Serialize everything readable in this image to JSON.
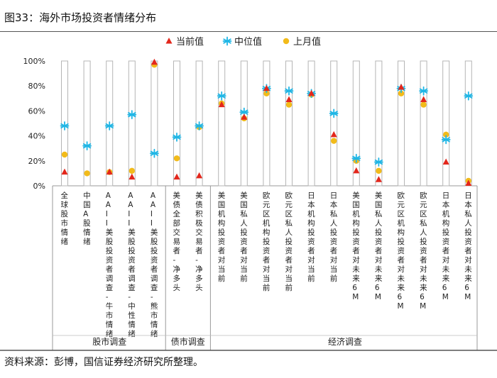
{
  "figure": {
    "title": "图33：海外市场投资者情绪分布",
    "source": "资料来源：彭博，国信证券经济研究所整理。"
  },
  "colors": {
    "current": "#e3271c",
    "median": "#1fb6e6",
    "last_month": "#f2bb1a",
    "bar_outline": "#b5b5b5"
  },
  "chart_data": {
    "type": "scatter",
    "y_ticks": [
      "0%",
      "20%",
      "40%",
      "60%",
      "80%",
      "100%"
    ],
    "ylim": [
      0,
      100
    ],
    "legend": [
      {
        "key": "current",
        "label": "当前值",
        "marker": "triangle"
      },
      {
        "key": "median",
        "label": "中位值",
        "marker": "asterisk"
      },
      {
        "key": "last_month",
        "label": "上月值",
        "marker": "circle"
      }
    ],
    "categories": [
      "全球股市情绪",
      "中国A股情绪",
      "AAII美股投资者调查-牛市情绪",
      "AAII美股投资者调查-中性情绪",
      "AAII美股投资者调查-熊市情绪",
      "美债全部交易者-净多头",
      "美债积极交易者-净多头",
      "美国机构投资者对当前",
      "美国私人投资者对当前",
      "欧元区机构投资者对当前",
      "欧元区私人投资者对当前",
      "日本机构投资者对当前",
      "日本私人投资者对当前",
      "美国机构投资者对未来6M",
      "美国私人投资者对未来6M",
      "欧元区机构投资者对未来6M",
      "欧元区私人投资者对未来6M",
      "日本机构投资者对未来6M",
      "日本私人投资者对未来6M"
    ],
    "series": [
      {
        "key": "current",
        "name": "当前值",
        "values": [
          11,
          null,
          11,
          7,
          99,
          7,
          8,
          65,
          55,
          78,
          69,
          74,
          41,
          12,
          5,
          79,
          69,
          19,
          2
        ]
      },
      {
        "key": "median",
        "name": "中位值",
        "values": [
          48,
          32,
          48,
          57,
          26,
          39,
          48,
          72,
          59,
          78,
          76,
          74,
          58,
          22,
          19,
          78,
          76,
          37,
          72
        ]
      },
      {
        "key": "last_month",
        "name": "上月值",
        "values": [
          25,
          10,
          11,
          12,
          97,
          22,
          47,
          66,
          54,
          74,
          65,
          73,
          36,
          20,
          12,
          74,
          65,
          41,
          4
        ]
      }
    ],
    "groups": [
      {
        "label": "股市调查",
        "start": 0,
        "end": 4
      },
      {
        "label": "债市调查",
        "start": 5,
        "end": 6
      },
      {
        "label": "经济调查",
        "start": 7,
        "end": 18
      }
    ]
  }
}
